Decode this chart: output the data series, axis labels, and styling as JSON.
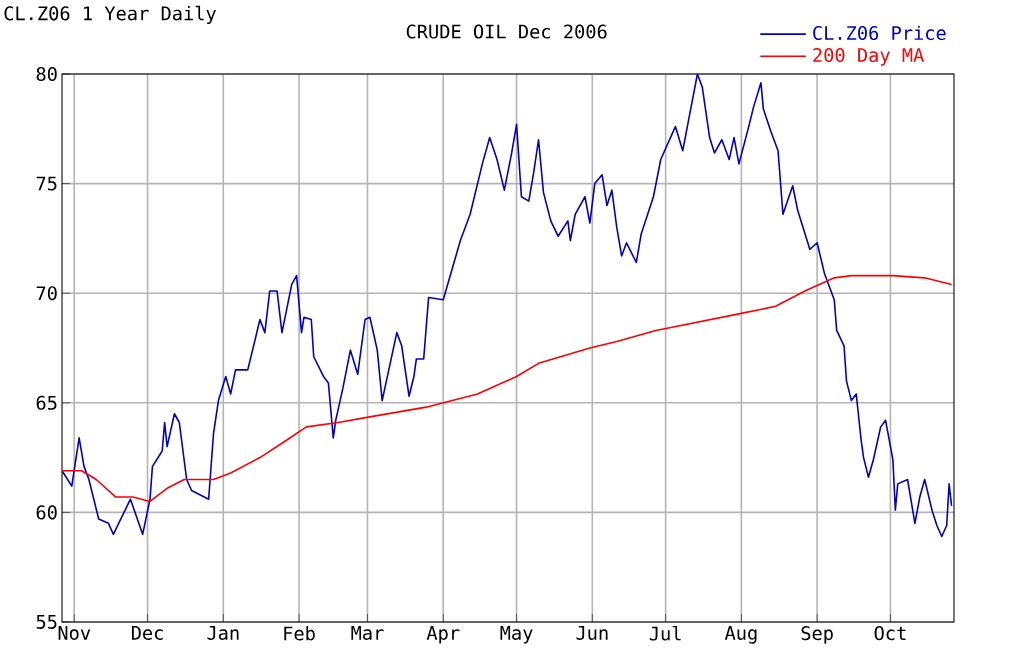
{
  "chart_data": {
    "type": "line",
    "title": "CRUDE OIL Dec 2006",
    "subtitle": "CL.Z06 1 Year Daily",
    "xlim": [
      "2005-10-27",
      "2006-10-27"
    ],
    "ylim": [
      55,
      80
    ],
    "yticks": [
      55,
      60,
      65,
      70,
      75,
      80
    ],
    "xticks": [
      {
        "value": "2005-11-01",
        "label": "Nov"
      },
      {
        "value": "2005-12-01",
        "label": "Dec"
      },
      {
        "value": "2006-01-01",
        "label": "Jan"
      },
      {
        "value": "2006-02-01",
        "label": "Feb"
      },
      {
        "value": "2006-03-01",
        "label": "Mar"
      },
      {
        "value": "2006-04-01",
        "label": "Apr"
      },
      {
        "value": "2006-05-01",
        "label": "May"
      },
      {
        "value": "2006-06-01",
        "label": "Jun"
      },
      {
        "value": "2006-07-01",
        "label": "Jul"
      },
      {
        "value": "2006-08-01",
        "label": "Aug"
      },
      {
        "value": "2006-09-01",
        "label": "Sep"
      },
      {
        "value": "2006-10-01",
        "label": "Oct"
      }
    ],
    "grid": true,
    "legend": "top right",
    "marker": "none",
    "line_style": "solid",
    "series": [
      {
        "name": "CL.Z06 Price",
        "color": "#0000cc",
        "x": [
          "2005-10-27",
          "2005-10-31",
          "2005-11-03",
          "2005-11-05",
          "2005-11-07",
          "2005-11-11",
          "2005-11-15",
          "2005-11-17",
          "2005-11-24",
          "2005-11-29",
          "2005-12-02",
          "2005-12-03",
          "2005-12-07",
          "2005-12-08",
          "2005-12-09",
          "2005-12-12",
          "2005-12-14",
          "2005-12-17",
          "2005-12-19",
          "2005-12-26",
          "2005-12-28",
          "2005-12-30",
          "2006-01-02",
          "2006-01-04",
          "2006-01-06",
          "2006-01-11",
          "2006-01-16",
          "2006-01-18",
          "2006-01-20",
          "2006-01-23",
          "2006-01-25",
          "2006-01-29",
          "2006-01-31",
          "2006-02-02",
          "2006-02-03",
          "2006-02-06",
          "2006-02-07",
          "2006-02-11",
          "2006-02-13",
          "2006-02-15",
          "2006-02-16",
          "2006-02-19",
          "2006-02-22",
          "2006-02-25",
          "2006-02-28",
          "2006-03-02",
          "2006-03-05",
          "2006-03-07",
          "2006-03-13",
          "2006-03-15",
          "2006-03-18",
          "2006-03-20",
          "2006-03-21",
          "2006-03-24",
          "2006-03-26",
          "2006-04-01",
          "2006-04-08",
          "2006-04-12",
          "2006-04-17",
          "2006-04-20",
          "2006-04-23",
          "2006-04-26",
          "2006-04-29",
          "2006-05-01",
          "2006-05-03",
          "2006-05-06",
          "2006-05-08",
          "2006-05-10",
          "2006-05-12",
          "2006-05-15",
          "2006-05-18",
          "2006-05-22",
          "2006-05-23",
          "2006-05-25",
          "2006-05-29",
          "2006-05-31",
          "2006-06-02",
          "2006-06-05",
          "2006-06-07",
          "2006-06-09",
          "2006-06-11",
          "2006-06-13",
          "2006-06-15",
          "2006-06-19",
          "2006-06-21",
          "2006-06-26",
          "2006-06-29",
          "2006-07-05",
          "2006-07-08",
          "2006-07-14",
          "2006-07-16",
          "2006-07-19",
          "2006-07-21",
          "2006-07-24",
          "2006-07-27",
          "2006-07-29",
          "2006-07-31",
          "2006-08-04",
          "2006-08-06",
          "2006-08-09",
          "2006-08-10",
          "2006-08-13",
          "2006-08-16",
          "2006-08-18",
          "2006-08-22",
          "2006-08-24",
          "2006-08-29",
          "2006-09-01",
          "2006-09-04",
          "2006-09-08",
          "2006-09-09",
          "2006-09-12",
          "2006-09-13",
          "2006-09-15",
          "2006-09-17",
          "2006-09-19",
          "2006-09-20",
          "2006-09-22",
          "2006-09-24",
          "2006-09-27",
          "2006-09-29",
          "2006-10-02",
          "2006-10-03",
          "2006-10-04",
          "2006-10-08",
          "2006-10-11",
          "2006-10-13",
          "2006-10-15",
          "2006-10-18",
          "2006-10-20",
          "2006-10-22",
          "2006-10-24",
          "2006-10-25",
          "2006-10-26"
        ],
        "values": [
          61.9,
          61.2,
          63.4,
          62.1,
          61.5,
          59.7,
          59.5,
          59.0,
          60.6,
          59.0,
          60.6,
          62.1,
          62.8,
          64.1,
          63.0,
          64.5,
          64.1,
          61.5,
          61.0,
          60.6,
          63.6,
          65.1,
          66.2,
          65.4,
          66.5,
          66.5,
          68.8,
          68.2,
          70.1,
          70.1,
          68.2,
          70.4,
          70.8,
          68.2,
          68.9,
          68.8,
          67.1,
          66.2,
          65.9,
          63.4,
          64.2,
          65.7,
          67.4,
          66.3,
          68.8,
          68.9,
          67.4,
          65.1,
          68.2,
          67.6,
          65.3,
          66.2,
          67.0,
          67.0,
          69.8,
          69.7,
          72.4,
          73.6,
          75.9,
          77.1,
          76.1,
          74.7,
          76.4,
          77.7,
          74.4,
          74.2,
          75.5,
          77.0,
          74.6,
          73.3,
          72.6,
          73.3,
          72.4,
          73.6,
          74.4,
          73.2,
          75.0,
          75.4,
          74.0,
          74.7,
          73.0,
          71.7,
          72.3,
          71.4,
          72.7,
          74.4,
          76.1,
          77.6,
          76.5,
          80.0,
          79.4,
          77.1,
          76.4,
          77.0,
          76.1,
          77.1,
          75.9,
          77.6,
          78.5,
          79.6,
          78.4,
          77.4,
          76.5,
          73.6,
          74.9,
          73.8,
          72.0,
          72.3,
          70.9,
          69.7,
          68.3,
          67.6,
          66.0,
          65.1,
          65.4,
          63.3,
          62.5,
          61.6,
          62.4,
          63.9,
          64.2,
          62.4,
          60.1,
          61.3,
          61.5,
          59.5,
          60.7,
          61.5,
          60.1,
          59.4,
          58.9,
          59.4,
          61.3,
          60.3
        ]
      },
      {
        "name": "200 Day MA",
        "color": "#ff0000",
        "x": [
          "2005-10-27",
          "2005-11-04",
          "2005-11-10",
          "2005-11-18",
          "2005-11-25",
          "2005-12-02",
          "2005-12-09",
          "2005-12-16",
          "2005-12-28",
          "2006-01-04",
          "2006-01-16",
          "2006-01-27",
          "2006-02-04",
          "2006-02-17",
          "2006-02-27",
          "2006-03-25",
          "2006-04-15",
          "2006-05-01",
          "2006-05-10",
          "2006-05-31",
          "2006-06-11",
          "2006-06-27",
          "2006-08-02",
          "2006-08-15",
          "2006-08-27",
          "2006-09-08",
          "2006-09-15",
          "2006-10-02",
          "2006-10-15",
          "2006-10-26"
        ],
        "values": [
          61.9,
          61.9,
          61.5,
          60.7,
          60.7,
          60.5,
          61.1,
          61.5,
          61.5,
          61.8,
          62.5,
          63.3,
          63.9,
          64.1,
          64.3,
          64.8,
          65.4,
          66.2,
          66.8,
          67.5,
          67.8,
          68.3,
          69.1,
          69.4,
          70.1,
          70.7,
          70.8,
          70.8,
          70.7,
          70.4
        ]
      }
    ]
  }
}
